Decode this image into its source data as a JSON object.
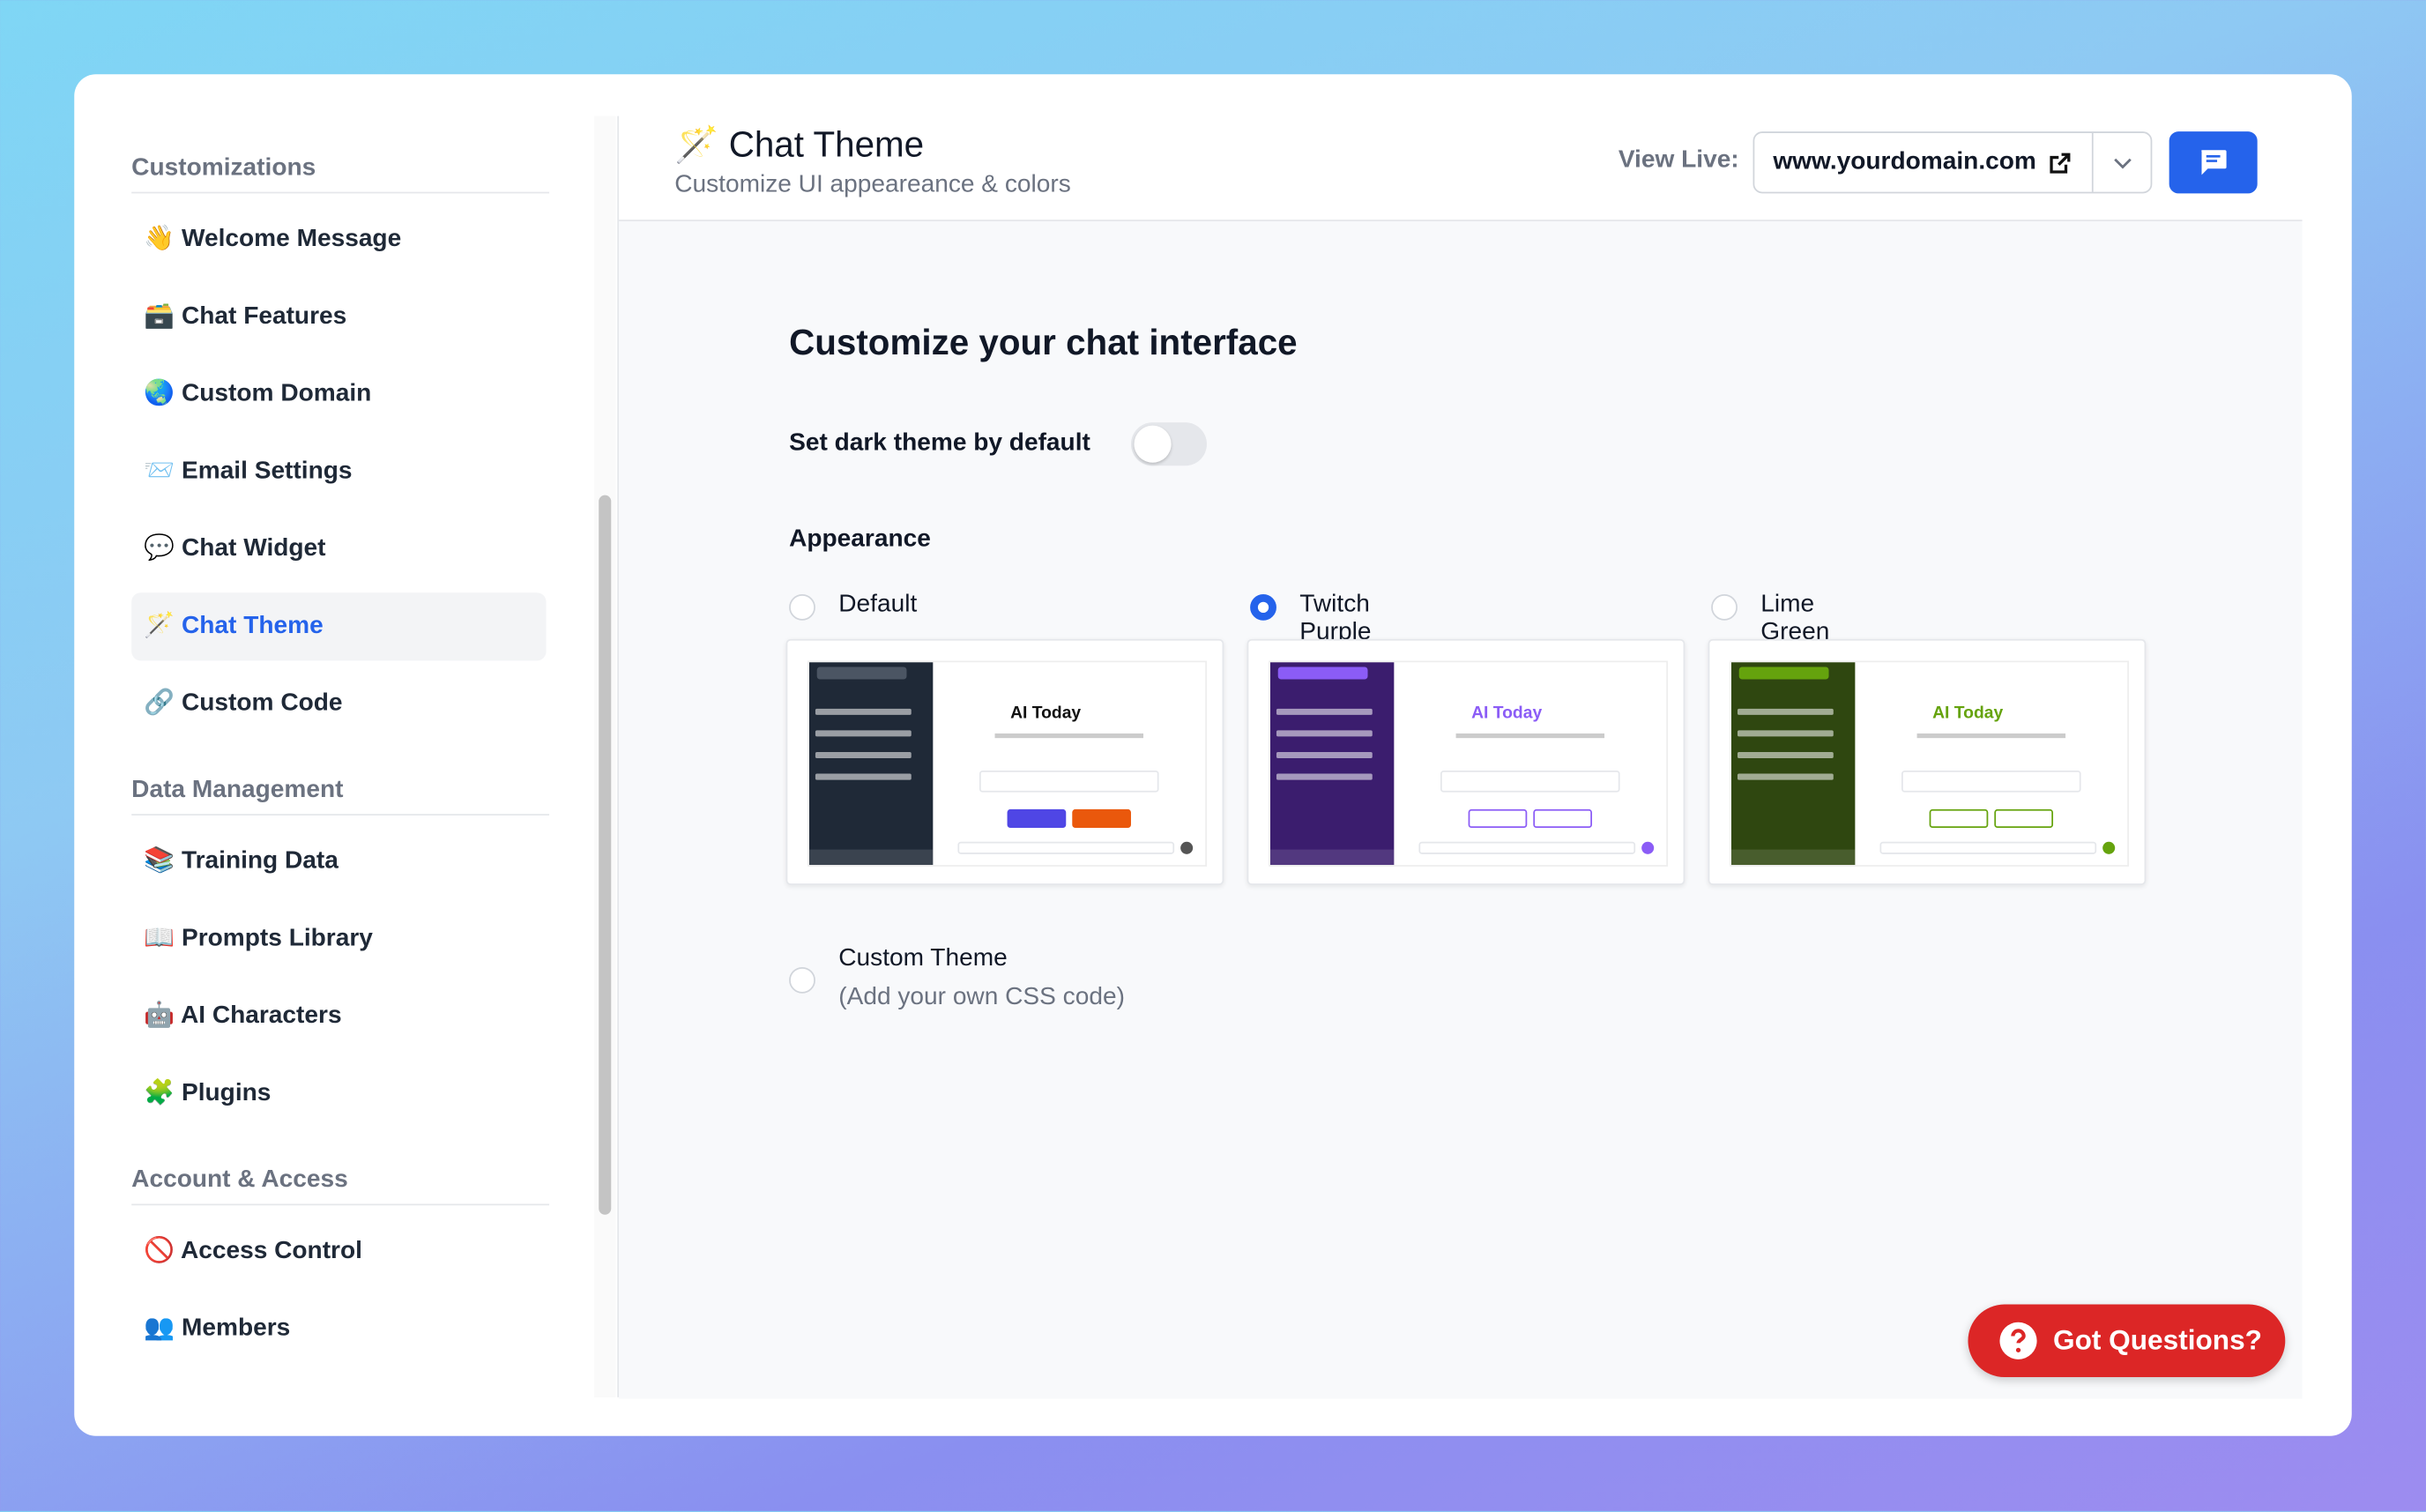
{
  "sidebar": {
    "sections": [
      {
        "title": "Customizations",
        "items": [
          {
            "label": "👋 Welcome Message"
          },
          {
            "label": "🗃️ Chat Features"
          },
          {
            "label": "🌏 Custom Domain"
          },
          {
            "label": "📨 Email Settings"
          },
          {
            "label": "💬 Chat Widget"
          },
          {
            "label": "🪄 Chat Theme",
            "active": true
          },
          {
            "label": "🔗 Custom Code"
          }
        ]
      },
      {
        "title": "Data Management",
        "items": [
          {
            "label": "📚 Training Data"
          },
          {
            "label": "📖 Prompts Library"
          },
          {
            "label": "🤖 AI Characters"
          },
          {
            "label": "🧩 Plugins"
          }
        ]
      },
      {
        "title": "Account & Access",
        "items": [
          {
            "label": "🚫 Access Control"
          },
          {
            "label": "👥 Members"
          }
        ]
      }
    ]
  },
  "header": {
    "title": "🪄 Chat Theme",
    "subtitle": "Customize UI appeareance & colors",
    "view_live_label": "View Live:",
    "domain": "www.yourdomain.com"
  },
  "content": {
    "heading": "Customize your chat interface",
    "dark_toggle_label": "Set dark theme by default",
    "appearance_label": "Appearance",
    "themes": [
      {
        "name": "Default",
        "selected": false,
        "preview_title": "AI Today",
        "sidebar_color": "#1f2937",
        "accent_color": "#4f46e5"
      },
      {
        "name": "Twitch Purple",
        "selected": true,
        "preview_title": "AI Today",
        "sidebar_color": "#3b1d6e",
        "accent_color": "#8b5cf6"
      },
      {
        "name": "Lime Green",
        "selected": false,
        "preview_title": "AI Today",
        "sidebar_color": "#2f4710",
        "accent_color": "#65a30d"
      }
    ],
    "custom_theme": {
      "name": "Custom Theme",
      "description": "(Add your own CSS code)"
    }
  },
  "help_button": "Got Questions?"
}
